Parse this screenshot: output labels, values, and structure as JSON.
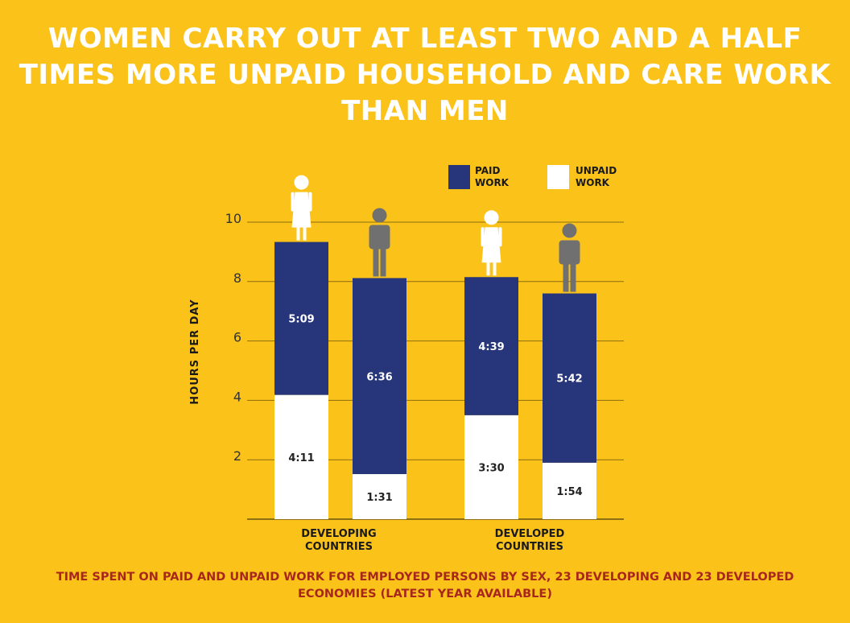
{
  "title": "WOMEN CARRY OUT AT LEAST TWO AND A HALF TIMES MORE UNPAID HOUSEHOLD AND CARE WORK THAN MEN",
  "caption": "TIME SPENT ON PAID AND UNPAID WORK FOR EMPLOYED PERSONS BY SEX, 23 DEVELOPING AND 23 DEVELOPED ECONOMIES (LATEST YEAR AVAILABLE)",
  "colors": {
    "background": "#FBC31A",
    "paid": "#27367A",
    "unpaid": "#FFFFFF",
    "man_icon": "#707070",
    "woman_icon": "#FFFFFF",
    "caption": "#A8271C"
  },
  "chart_data": {
    "type": "bar",
    "stacked": true,
    "ylabel": "HOURS PER DAY",
    "ylim": [
      0,
      10
    ],
    "yticks": [
      2,
      4,
      6,
      8,
      10
    ],
    "grid": true,
    "legend_position": "top-right",
    "groups": [
      {
        "label_lines": [
          "DEVELOPING",
          "COUNTRIES"
        ],
        "bars": [
          {
            "sex": "women",
            "icon": "woman-icon",
            "unpaid": 4.183,
            "unpaid_label": "4:11",
            "paid": 5.15,
            "paid_label": "5:09"
          },
          {
            "sex": "men",
            "icon": "man-icon",
            "unpaid": 1.517,
            "unpaid_label": "1:31",
            "paid": 6.6,
            "paid_label": "6:36"
          }
        ]
      },
      {
        "label_lines": [
          "DEVELOPED",
          "COUNTRIES"
        ],
        "bars": [
          {
            "sex": "women",
            "icon": "woman-icon",
            "unpaid": 3.5,
            "unpaid_label": "3:30",
            "paid": 4.65,
            "paid_label": "4:39"
          },
          {
            "sex": "men",
            "icon": "man-icon",
            "unpaid": 1.9,
            "unpaid_label": "1:54",
            "paid": 5.7,
            "paid_label": "5:42"
          }
        ]
      }
    ],
    "series": [
      {
        "key": "paid",
        "name_lines": [
          "PAID",
          "WORK"
        ]
      },
      {
        "key": "unpaid",
        "name_lines": [
          "UNPAID",
          "WORK"
        ]
      }
    ]
  }
}
